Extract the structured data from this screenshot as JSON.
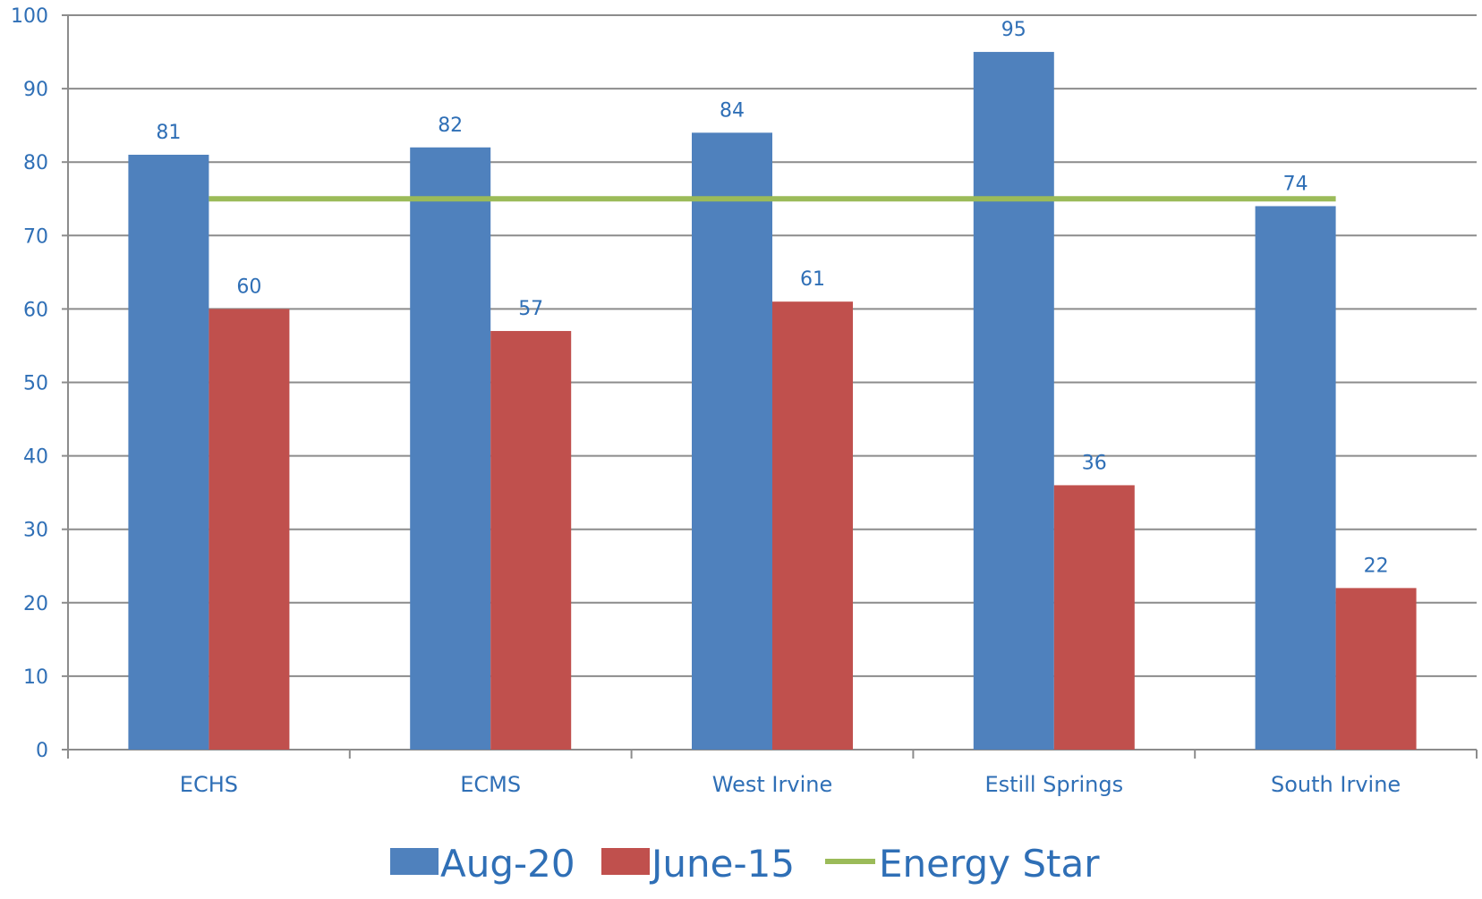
{
  "chart_data": {
    "type": "bar",
    "categories": [
      "ECHS",
      "ECMS",
      "West Irvine",
      "Estill Springs",
      "South Irvine"
    ],
    "series": [
      {
        "name": "Aug-20",
        "values": [
          81,
          82,
          84,
          95,
          74
        ],
        "color": "#4f81bd"
      },
      {
        "name": "June-15",
        "values": [
          60,
          57,
          61,
          36,
          22
        ],
        "color": "#c0504d"
      }
    ],
    "reference_line": {
      "name": "Energy Star",
      "value": 75,
      "color": "#9bbb59"
    },
    "ylim": [
      0,
      100
    ],
    "yticks": [
      0,
      10,
      20,
      30,
      40,
      50,
      60,
      70,
      80,
      90,
      100
    ],
    "grid": true,
    "legend_position": "bottom",
    "data_labels": true
  }
}
